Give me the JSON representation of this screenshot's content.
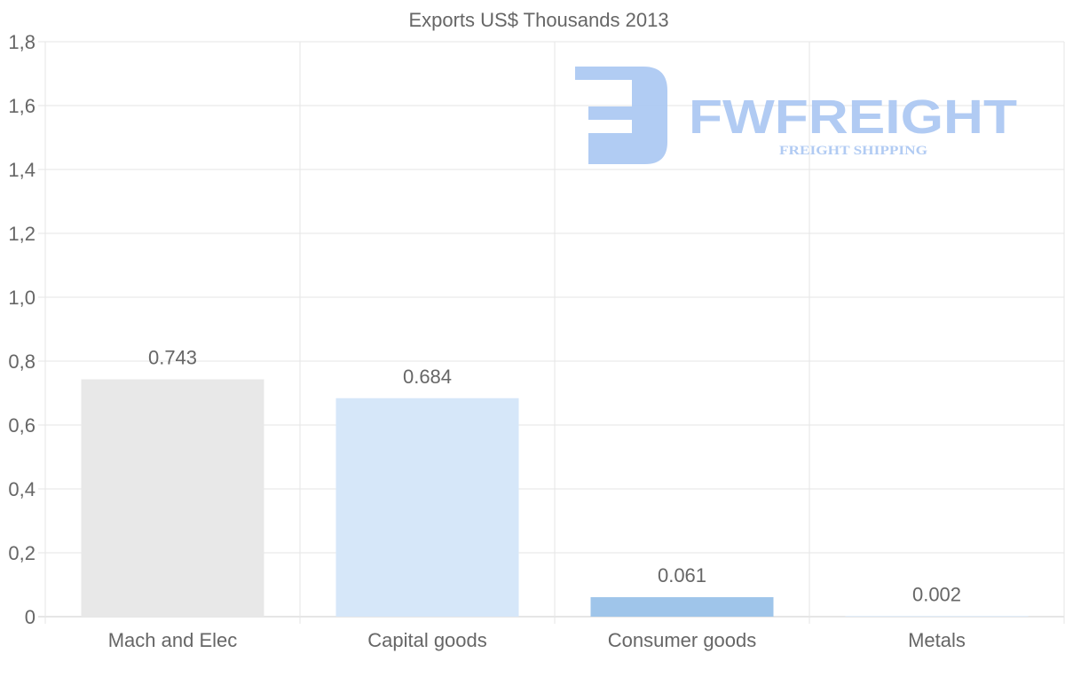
{
  "chart_data": {
    "type": "bar",
    "title": "Exports US$ Thousands 2013",
    "categories": [
      "Mach and Elec",
      "Capital goods",
      "Consumer goods",
      "Metals"
    ],
    "values": [
      0.743,
      0.684,
      0.061,
      0.002
    ],
    "value_labels": [
      "0.743",
      "0.684",
      "0.061",
      "0.002"
    ],
    "bar_colors": [
      "#e8e8e8",
      "#d6e7f9",
      "#9fc5ea",
      "#d6e7f9"
    ],
    "ylim": [
      0,
      1.8
    ],
    "yticks": [
      0,
      0.2,
      0.4,
      0.6,
      0.8,
      1.0,
      1.2,
      1.4,
      1.6,
      1.8
    ],
    "ytick_labels": [
      "0",
      "0,2",
      "0,4",
      "0,6",
      "0,8",
      "1,0",
      "1,2",
      "1,4",
      "1,6",
      "1,8"
    ],
    "xlabel": "",
    "ylabel": "",
    "grid": true,
    "legend": "none"
  },
  "watermark": {
    "brand": "FWFREIGHT",
    "tagline": "FREIGHT SHIPPING",
    "color": "#a9c6f2"
  }
}
